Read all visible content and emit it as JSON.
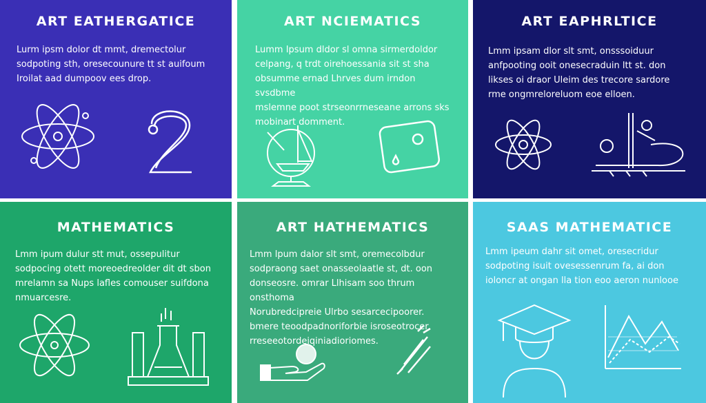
{
  "colors": {
    "tile_0": "#3a2fb5",
    "tile_1": "#45d3a4",
    "tile_2": "#14166a",
    "tile_3": "#1ea66a",
    "tile_4": "#3aaa7c",
    "tile_5": "#4cc8e0",
    "line": "#ffffff"
  },
  "tiles": [
    {
      "title": "ART EATHERGATICE",
      "lines": [
        "Lurm ipsm dolor dt mmt, dremectolur",
        "sodpoting sth, oresecounure tt st auifoum",
        "Iroilat aad dumpoov ees drop."
      ],
      "icons": [
        "atom-icon",
        "number-two-icon"
      ]
    },
    {
      "title": "ART NCIEMATICS",
      "lines": [
        "Lumm Ipsum dldor sl omna sirmerdoldor",
        "celpang, q trdt oirehoessania sit st sha",
        "obsumme ernad Lhrves dum irndon svsdbme",
        "mslemne poot strseonrrneseane arrons sks",
        "mobinart domment."
      ],
      "icons": [
        "globe-sailboat-icon",
        "dice-icon"
      ]
    },
    {
      "title": "ART EAPHRLTICE",
      "lines": [
        "Lmm ipsam dlor slt smt, onsssoiduur",
        "anfpooting ooit onesecraduin ltt st. don",
        "likses oi draor Uleim des trecore sardore",
        "rme ongmreloreluom eoe elloen."
      ],
      "icons": [
        "atom-icon",
        "lab-apparatus-icon"
      ]
    },
    {
      "title": "MATHEMATICS",
      "lines": [
        "Lmm ipum dulur stt mut, ossepulitur",
        "sodpocing otett moreoedreolder dit dt sbon",
        "mrelamn sa Nups lafles comouser suifdona",
        "nmuarcesre."
      ],
      "icons": [
        "atom-icon",
        "test-tubes-icon"
      ]
    },
    {
      "title": "ART HATHEMATICS",
      "lines": [
        "Lmm lpum dalor slt smt, oremecolbdur",
        "sodpraong saet onasseolaatle st, dt. oon",
        "donseosre. omrar Llhisam soo thrum onsthoma",
        "Norubredcipreie Ulrbo sesarcecipoorer.",
        "bmere teoodpadnoriforbie isroseotrocer",
        "rreseeotordeiqiniadioriomes."
      ],
      "icons": [
        "hand-holding-icon",
        "rocket-icon"
      ]
    },
    {
      "title": "SAAS MATHEMATICE",
      "lines": [
        "Lmm ipeum dahr sit omet, oresecridur",
        "sodpoting isuit ovesessenrum fa, ai don",
        "ioloncr at ongan lla tion eoo aeron nunlooe"
      ],
      "icons": [
        "graduate-icon",
        "line-graph-icon"
      ]
    }
  ]
}
